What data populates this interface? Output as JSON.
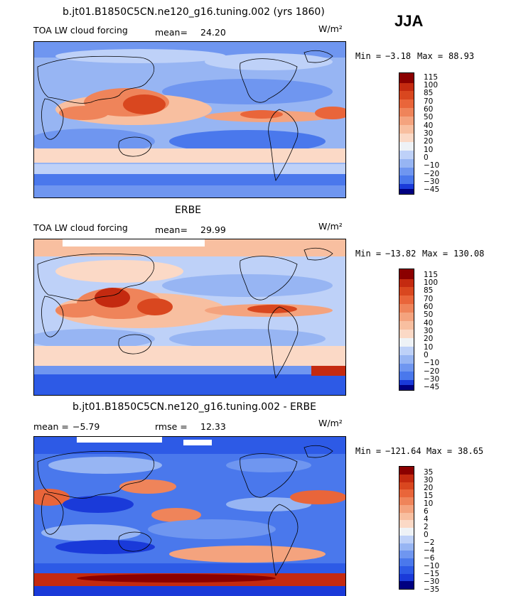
{
  "season": "JJA",
  "colors": {
    "blues": [
      "#000080",
      "#0a1db8",
      "#1a3ad9",
      "#2d5ae6",
      "#4a78ec",
      "#6f96f0",
      "#97b5f3",
      "#bed1f8"
    ],
    "light": "#eef2f6",
    "reds": [
      "#fbd9c6",
      "#f8bfa0",
      "#f4a37e",
      "#ef845a",
      "#e9653a",
      "#d9471f",
      "#c42a10",
      "#8b0000"
    ]
  },
  "panels": [
    {
      "id": "model",
      "title": "b.jt01.B1850C5CN.ne120_g16.tuning.002 (yrs 1860)",
      "subtitle": "TOA LW cloud forcing",
      "stat1_label": "mean=",
      "stat1_value": "24.20",
      "stat2_label": "",
      "stat2_value": "",
      "units": "W/m²",
      "min_label": "Min =",
      "min_value": "−3.18",
      "max_label": "Max =",
      "max_value": "88.93",
      "levels": [
        "115",
        "100",
        "85",
        "70",
        "60",
        "50",
        "40",
        "30",
        "20",
        "10",
        "0",
        "−10",
        "−20",
        "−30",
        "−45"
      ]
    },
    {
      "id": "obs",
      "title": "ERBE",
      "subtitle": "TOA LW cloud forcing",
      "stat1_label": "mean=",
      "stat1_value": "29.99",
      "stat2_label": "",
      "stat2_value": "",
      "units": "W/m²",
      "min_label": "Min =",
      "min_value": "−13.82",
      "max_label": "Max =",
      "max_value": "130.08",
      "levels": [
        "115",
        "100",
        "85",
        "70",
        "60",
        "50",
        "40",
        "30",
        "20",
        "10",
        "0",
        "−10",
        "−20",
        "−30",
        "−45"
      ]
    },
    {
      "id": "diff",
      "title": "b.jt01.B1850C5CN.ne120_g16.tuning.002 - ERBE",
      "subtitle": "",
      "stat1_label": "mean =",
      "stat1_value": "−5.79",
      "stat2_label": "rmse =",
      "stat2_value": "12.33",
      "units": "W/m²",
      "min_label": "Min =",
      "min_value": "−121.64",
      "max_label": "Max =",
      "max_value": "38.65",
      "levels": [
        "35",
        "30",
        "20",
        "15",
        "10",
        "6",
        "4",
        "2",
        "0",
        "−2",
        "−4",
        "−6",
        "−10",
        "−15",
        "−30",
        "−35"
      ]
    }
  ]
}
